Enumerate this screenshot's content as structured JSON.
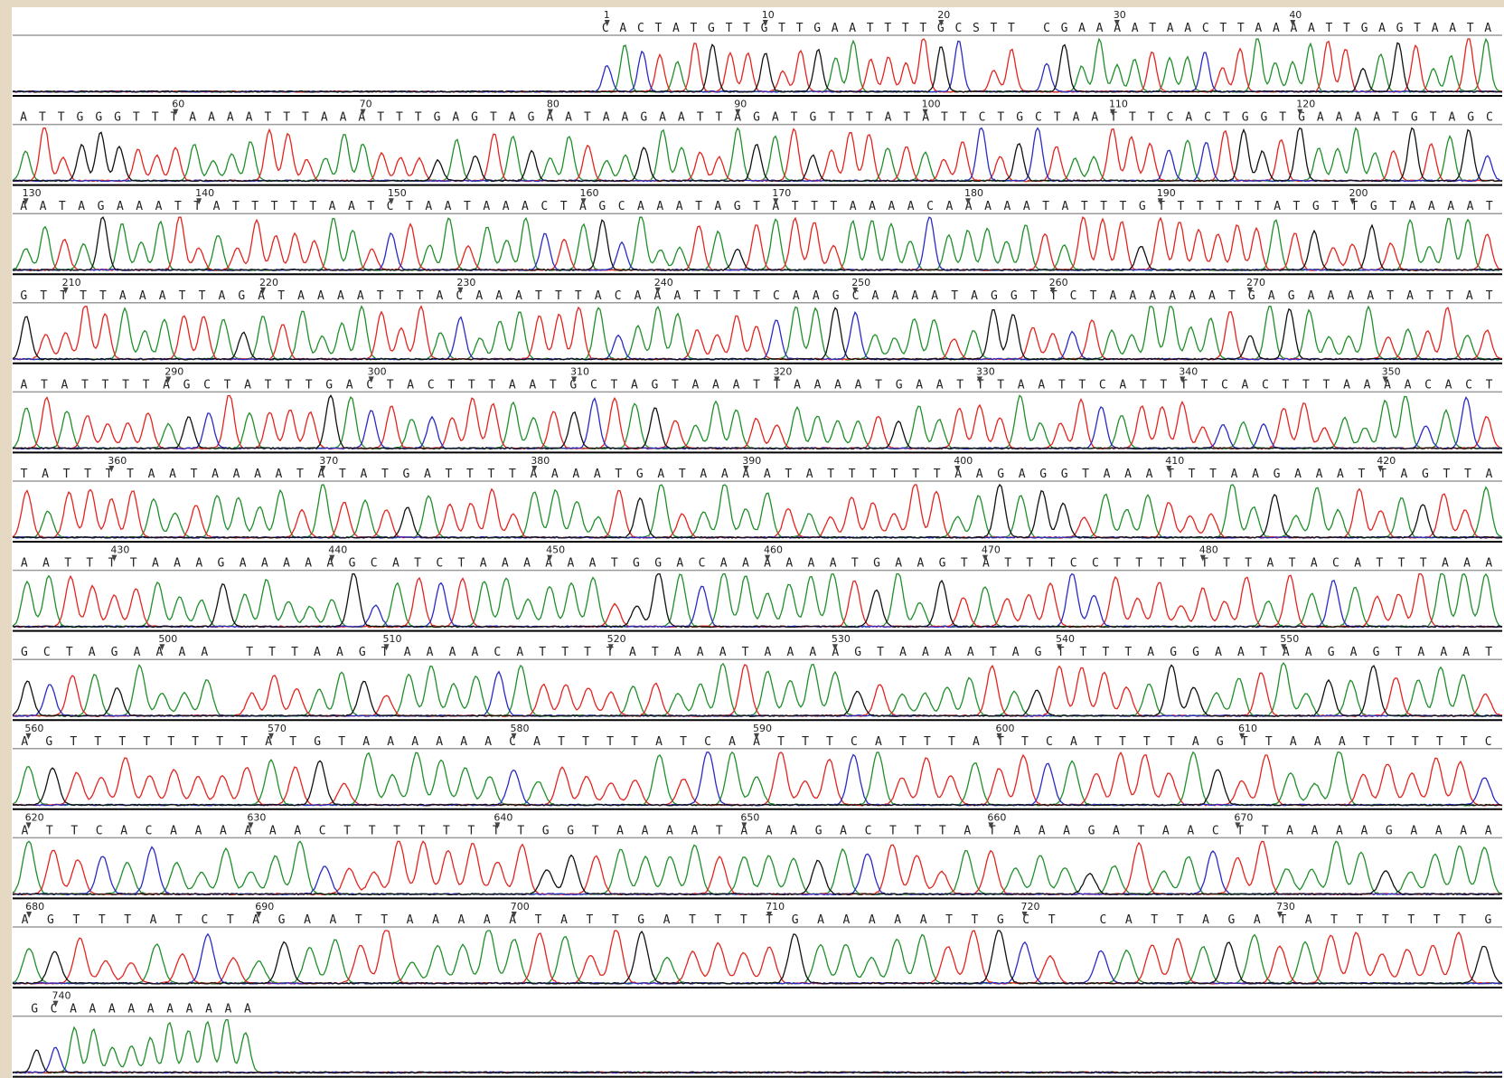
{
  "rows": [
    {
      "sequence": "CACTATGTTGTTGAATTTTGCSTT CGAAAATAACTTAAAATTGAGTAATA",
      "markers": [
        1,
        10,
        20,
        30,
        40
      ]
    },
    {
      "sequence": "ATTGGGTTTAAAATTTAAATTTGAGTAGAATAAGAATTAGATGTTTATATTCTGCTAATTTCACTGGTGAAAATGTAGC",
      "markers": [
        60,
        70,
        80,
        90,
        100,
        110,
        120
      ]
    },
    {
      "sequence": "AATAGAAATTATTTTTAATCTAATAAACTAGCAAATAGTATTTAAAACAAAAATATTTGTTTTTTATGTTGTAAAAT",
      "markers": [
        130,
        140,
        150,
        160,
        170,
        180,
        190,
        200
      ]
    },
    {
      "sequence": "GTTTTAAATTAGATAAAATTTACAAATTTACAAATTTTCAAGCAAAATAGGTTCTAAAAAATGAGAAAATATTAT",
      "markers": [
        210,
        220,
        230,
        240,
        250,
        260,
        270
      ]
    },
    {
      "sequence": "ATATTTTAGCTATTTGACTACTTTAATGCTAGTAAATTAAAATGAATTTAATTCATTTTCACTTTAAAACACT",
      "markers": [
        290,
        300,
        310,
        320,
        330,
        340,
        350
      ]
    },
    {
      "sequence": "TATTTTAATAAAATATATGATTTTAAAATGATAAAATATTTTTTAAGAGGTAAATTTAAGAAATTAGTTA",
      "markers": [
        360,
        370,
        380,
        390,
        400,
        410,
        420
      ]
    },
    {
      "sequence": "AATTTTAAAGAAAAAGCATCTAAAAAATGGACAAAAAATGAAGTATTTCCTTTTTTTATACATTTAAA",
      "markers": [
        430,
        440,
        450,
        460,
        470,
        480
      ]
    },
    {
      "sequence": "GCTAGAAAA TTTAAGTAAAACATTTTATAAATAAAAGTAAAATAGTTTTAGGAATAAGAGTAAAT",
      "markers": [
        500,
        510,
        520,
        530,
        540,
        550
      ]
    },
    {
      "sequence": "AGTTTTTTTTATGTAAAAAACATTTTATCAATTTCATTTATTCATTTTAGTTAAATTTTTC",
      "markers": [
        560,
        570,
        580,
        590,
        600,
        610
      ]
    },
    {
      "sequence": "ATTCACAAAAAACTTTTTTTTGGTAAAATAAAGACTTTATAAAGATAACTTAAAAGAAAA",
      "markers": [
        620,
        630,
        640,
        650,
        660,
        670
      ]
    },
    {
      "sequence": "AGTTTATCTAGAATTAAAAATATTGATTTTGAAAAATTGCT CATTAGATATTTTTTG",
      "markers": [
        680,
        690,
        700,
        710,
        720,
        730
      ]
    },
    {
      "sequence": "GCAAAAAAAAAA",
      "markers": [
        740
      ]
    }
  ],
  "base_colors": {
    "A": "#1f8f2a",
    "T": "#e3241f",
    "C": "#2a2ac4",
    "G": "#111111"
  }
}
